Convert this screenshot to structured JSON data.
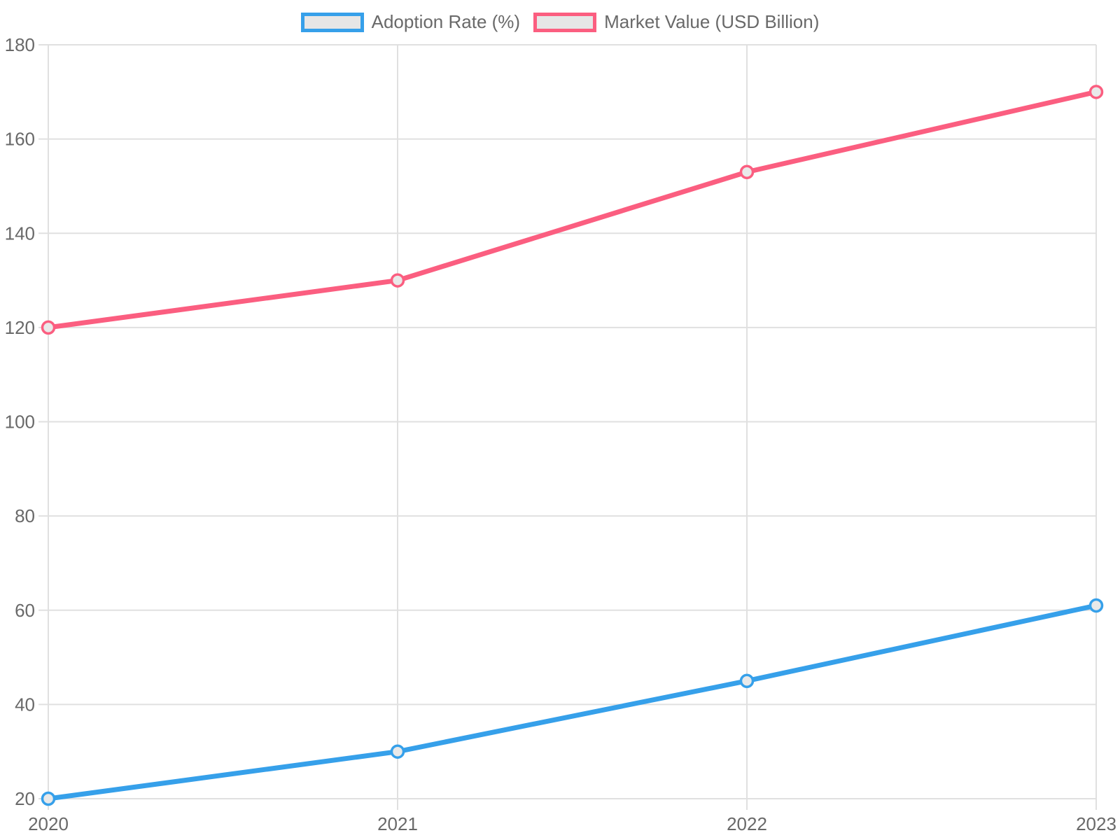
{
  "chart_data": {
    "type": "line",
    "title": "",
    "xlabel": "",
    "ylabel": "",
    "categories": [
      "2020",
      "2021",
      "2022",
      "2023"
    ],
    "series": [
      {
        "name": "Adoption Rate (%)",
        "values": [
          20,
          30,
          45,
          61
        ],
        "color": "#36a0ea"
      },
      {
        "name": "Market Value (USD Billion)",
        "values": [
          120,
          130,
          153,
          170
        ],
        "color": "#fb5e80"
      }
    ],
    "ylim": [
      20,
      180
    ],
    "yticks": [
      20,
      40,
      60,
      80,
      100,
      120,
      140,
      160,
      180
    ],
    "grid": true,
    "legend_position": "top",
    "colors": {
      "grid_color": "#e0e0e0",
      "tick_label_color": "#696969",
      "swatch_fill": "#e6e6e6",
      "point_fill": "#e9e9e9"
    }
  }
}
